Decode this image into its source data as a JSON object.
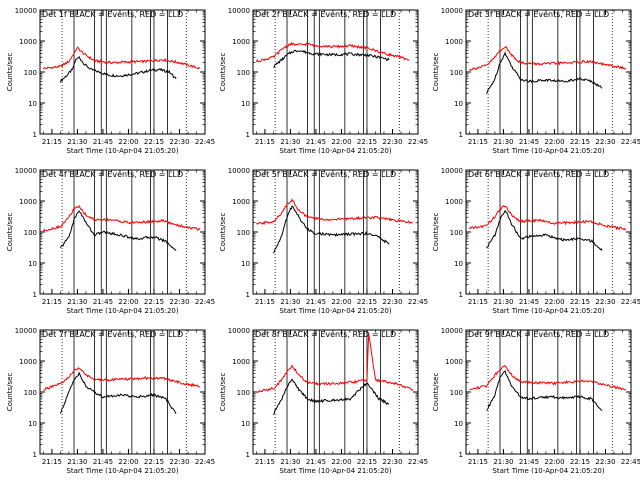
{
  "chart_data": {
    "type": "line",
    "layout": "3x3 grid",
    "y_scale": "log",
    "ylim": [
      1,
      10000
    ],
    "yticks": [
      "1",
      "10",
      "100",
      "1000",
      "10000"
    ],
    "ylabel": "Counts/sec",
    "xlim": [
      "21:08",
      "22:45"
    ],
    "xticks": [
      "21:15",
      "21:30",
      "21:45",
      "22:00",
      "22:15",
      "22:30",
      "22:45"
    ],
    "xlabel": "Start Time (10-Apr-04 21:05:20)",
    "series_colors": {
      "Events": "#000000",
      "LLD": "#ff0000"
    },
    "panels": [
      {
        "title": "Det 1f BLACK = Events, RED = LLD",
        "series": [
          {
            "name": "Events",
            "times": [
              "21:20",
              "21:24",
              "21:27",
              "21:29",
              "21:31",
              "21:34",
              "21:38",
              "21:44",
              "21:48",
              "21:55",
              "22:05",
              "22:12",
              "22:18",
              "22:24",
              "22:28"
            ],
            "values": [
              50,
              80,
              120,
              250,
              300,
              180,
              120,
              95,
              80,
              75,
              90,
              110,
              120,
              100,
              60
            ]
          },
          {
            "name": "LLD",
            "times": [
              "21:10",
              "21:20",
              "21:25",
              "21:28",
              "21:30",
              "21:34",
              "21:40",
              "21:50",
              "22:00",
              "22:10",
              "22:20",
              "22:30",
              "22:42"
            ],
            "values": [
              130,
              150,
              220,
              400,
              600,
              380,
              230,
              200,
              210,
              220,
              250,
              200,
              130
            ]
          }
        ],
        "solid_markers": [
          "21:28",
          "21:40",
          "21:44",
          "21:47",
          "22:02",
          "22:13",
          "22:15",
          "22:23"
        ],
        "dotted_markers": [
          "21:21",
          "22:34"
        ]
      },
      {
        "title": "Det 2f BLACK = Events, RED = LLD",
        "series": [
          {
            "name": "Events",
            "times": [
              "21:20",
              "21:25",
              "21:28",
              "21:31",
              "21:35",
              "21:40",
              "21:45",
              "21:55",
              "22:05",
              "22:15",
              "22:22",
              "22:28"
            ],
            "values": [
              150,
              250,
              350,
              450,
              500,
              420,
              380,
              360,
              380,
              350,
              300,
              250
            ]
          },
          {
            "name": "LLD",
            "times": [
              "21:10",
              "21:20",
              "21:26",
              "21:30",
              "21:35",
              "21:40",
              "21:45",
              "21:50",
              "21:55",
              "22:05",
              "22:15",
              "22:25",
              "22:40"
            ],
            "values": [
              220,
              300,
              600,
              800,
              750,
              800,
              700,
              700,
              650,
              700,
              600,
              400,
              250
            ]
          }
        ],
        "solid_markers": [
          "21:28",
          "21:40",
          "21:44",
          "21:47",
          "22:02",
          "22:13",
          "22:15",
          "22:23"
        ],
        "dotted_markers": [
          "21:21",
          "22:34"
        ]
      },
      {
        "title": "Det 3f BLACK = Events, RED = LLD",
        "series": [
          {
            "name": "Events",
            "times": [
              "21:20",
              "21:25",
              "21:28",
              "21:31",
              "21:35",
              "21:40",
              "21:45",
              "21:55",
              "22:05",
              "22:15",
              "22:22",
              "22:28"
            ],
            "values": [
              20,
              60,
              200,
              400,
              150,
              60,
              50,
              55,
              50,
              60,
              50,
              30
            ]
          },
          {
            "name": "LLD",
            "times": [
              "21:10",
              "21:20",
              "21:25",
              "21:28",
              "21:31",
              "21:35",
              "21:40",
              "21:50",
              "22:00",
              "22:10",
              "22:20",
              "22:30",
              "22:42"
            ],
            "values": [
              120,
              160,
              300,
              500,
              650,
              350,
              200,
              180,
              190,
              200,
              220,
              170,
              130
            ]
          }
        ],
        "solid_markers": [
          "21:28",
          "21:40",
          "21:44",
          "21:47",
          "22:02",
          "22:13",
          "22:15",
          "22:23"
        ],
        "dotted_markers": [
          "21:21",
          "22:34"
        ]
      },
      {
        "title": "Det 4f BLACK = Events, RED = LLD",
        "series": [
          {
            "name": "Events",
            "times": [
              "21:20",
              "21:25",
              "21:28",
              "21:31",
              "21:35",
              "21:40",
              "21:45",
              "21:55",
              "22:05",
              "22:15",
              "22:22",
              "22:28"
            ],
            "values": [
              30,
              70,
              250,
              500,
              200,
              80,
              100,
              80,
              60,
              70,
              50,
              25
            ]
          },
          {
            "name": "LLD",
            "times": [
              "21:10",
              "21:20",
              "21:25",
              "21:28",
              "21:31",
              "21:35",
              "21:40",
              "21:50",
              "22:00",
              "22:10",
              "22:20",
              "22:30",
              "22:42"
            ],
            "values": [
              110,
              150,
              300,
              550,
              650,
              350,
              250,
              250,
              200,
              210,
              230,
              160,
              120
            ]
          }
        ],
        "solid_markers": [
          "21:28",
          "21:40",
          "21:44",
          "21:47",
          "22:02",
          "22:13",
          "22:15",
          "22:23"
        ],
        "dotted_markers": [
          "21:21",
          "22:34"
        ]
      },
      {
        "title": "Det 5f BLACK = Events, RED = LLD",
        "series": [
          {
            "name": "Events",
            "times": [
              "21:20",
              "21:25",
              "21:28",
              "21:31",
              "21:35",
              "21:40",
              "21:45",
              "21:55",
              "22:05",
              "22:15",
              "22:22",
              "22:28"
            ],
            "values": [
              20,
              80,
              300,
              700,
              300,
              120,
              90,
              80,
              85,
              90,
              70,
              40
            ]
          },
          {
            "name": "LLD",
            "times": [
              "21:10",
              "21:20",
              "21:25",
              "21:28",
              "21:31",
              "21:35",
              "21:40",
              "21:50",
              "22:00",
              "22:10",
              "22:20",
              "22:30",
              "22:42"
            ],
            "values": [
              180,
              220,
              400,
              800,
              1100,
              500,
              300,
              250,
              260,
              280,
              300,
              240,
              200
            ]
          }
        ],
        "solid_markers": [
          "21:28",
          "21:40",
          "21:44",
          "21:47",
          "22:02",
          "22:13",
          "22:15",
          "22:23"
        ],
        "dotted_markers": [
          "21:21",
          "22:34"
        ]
      },
      {
        "title": "Det 6f BLACK = Events, RED = LLD",
        "series": [
          {
            "name": "Events",
            "times": [
              "21:20",
              "21:25",
              "21:28",
              "21:31",
              "21:35",
              "21:40",
              "21:45",
              "21:55",
              "22:05",
              "22:15",
              "22:22",
              "22:28"
            ],
            "values": [
              30,
              80,
              250,
              500,
              180,
              60,
              70,
              80,
              55,
              60,
              50,
              25
            ]
          },
          {
            "name": "LLD",
            "times": [
              "21:10",
              "21:20",
              "21:25",
              "21:28",
              "21:31",
              "21:35",
              "21:40",
              "21:50",
              "22:00",
              "22:10",
              "22:20",
              "22:30",
              "22:42"
            ],
            "values": [
              130,
              160,
              320,
              550,
              700,
              350,
              220,
              240,
              190,
              200,
              220,
              160,
              120
            ]
          }
        ],
        "solid_markers": [
          "21:28",
          "21:40",
          "21:44",
          "21:47",
          "22:02",
          "22:13",
          "22:15",
          "22:23"
        ],
        "dotted_markers": [
          "21:21",
          "22:34"
        ]
      },
      {
        "title": "Det 7f BLACK = Events, RED = LLD",
        "series": [
          {
            "name": "Events",
            "times": [
              "21:20",
              "21:25",
              "21:28",
              "21:31",
              "21:35",
              "21:40",
              "21:45",
              "21:55",
              "22:05",
              "22:15",
              "22:22",
              "22:28"
            ],
            "values": [
              20,
              100,
              250,
              400,
              150,
              100,
              70,
              80,
              70,
              80,
              60,
              20
            ]
          },
          {
            "name": "LLD",
            "times": [
              "21:10",
              "21:20",
              "21:25",
              "21:28",
              "21:31",
              "21:35",
              "21:40",
              "21:50",
              "22:00",
              "22:10",
              "22:20",
              "22:30",
              "22:42"
            ],
            "values": [
              120,
              180,
              300,
              500,
              600,
              350,
              250,
              250,
              260,
              280,
              280,
              200,
              150
            ]
          }
        ],
        "solid_markers": [
          "21:28",
          "21:40",
          "21:44",
          "21:47",
          "22:02",
          "22:13",
          "22:15",
          "22:23"
        ],
        "dotted_markers": [
          "21:21",
          "22:34"
        ]
      },
      {
        "title": "Det 8f BLACK = Events, RED = LLD",
        "series": [
          {
            "name": "Events",
            "times": [
              "21:20",
              "21:25",
              "21:28",
              "21:31",
              "21:35",
              "21:40",
              "21:45",
              "21:55",
              "22:05",
              "22:15",
              "22:22",
              "22:28"
            ],
            "values": [
              20,
              60,
              150,
              250,
              120,
              60,
              50,
              55,
              60,
              200,
              60,
              40
            ]
          },
          {
            "name": "LLD",
            "times": [
              "21:10",
              "21:20",
              "21:25",
              "21:28",
              "21:31",
              "21:35",
              "21:40",
              "21:50",
              "22:00",
              "22:10",
              "22:15",
              "22:16",
              "22:20",
              "22:30",
              "22:42"
            ],
            "values": [
              100,
              130,
              250,
              450,
              700,
              350,
              200,
              180,
              190,
              220,
              250,
              8000,
              240,
              200,
              120
            ]
          }
        ],
        "solid_markers": [
          "21:28",
          "21:40",
          "21:44",
          "21:47",
          "22:02",
          "22:13",
          "22:15",
          "22:23"
        ],
        "dotted_markers": [
          "21:21",
          "22:34"
        ]
      },
      {
        "title": "Det 9f BLACK = Events, RED = LLD",
        "series": [
          {
            "name": "Events",
            "times": [
              "21:20",
              "21:25",
              "21:28",
              "21:31",
              "21:35",
              "21:40",
              "21:45",
              "21:55",
              "22:05",
              "22:15",
              "22:22",
              "22:28"
            ],
            "values": [
              25,
              80,
              300,
              450,
              150,
              70,
              60,
              70,
              65,
              70,
              60,
              25
            ]
          },
          {
            "name": "LLD",
            "times": [
              "21:10",
              "21:20",
              "21:25",
              "21:28",
              "21:31",
              "21:35",
              "21:40",
              "21:50",
              "22:00",
              "22:10",
              "22:20",
              "22:30",
              "22:42"
            ],
            "values": [
              120,
              160,
              350,
              550,
              700,
              350,
              220,
              200,
              190,
              210,
              230,
              170,
              120
            ]
          }
        ],
        "solid_markers": [
          "21:28",
          "21:40",
          "21:44",
          "21:47",
          "22:02",
          "22:13",
          "22:15",
          "22:23"
        ],
        "dotted_markers": [
          "21:21",
          "22:34"
        ]
      }
    ]
  }
}
